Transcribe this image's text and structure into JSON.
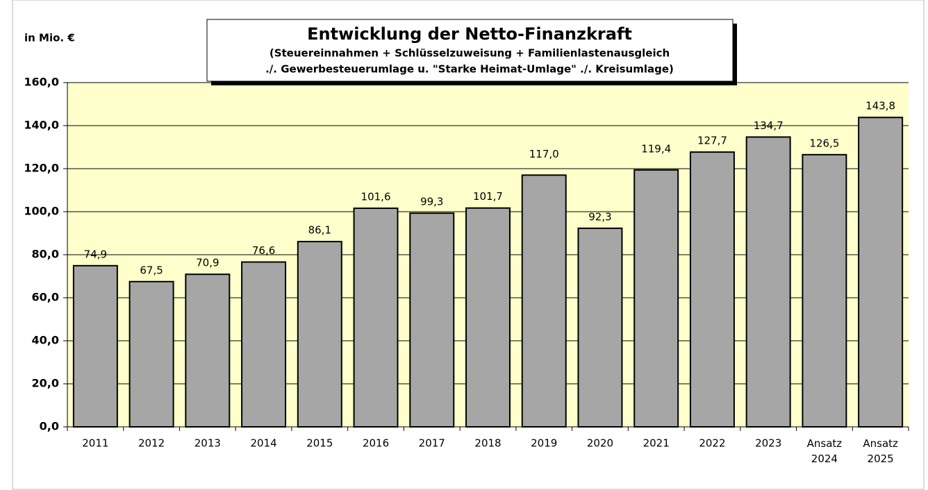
{
  "chart_data": {
    "type": "bar",
    "title": "Entwicklung der Netto-Finanzkraft",
    "subtitle": [
      "(Steuereinnahmen + Schlüsselzuweisung + Familienlastenausgleich",
      "./. Gewerbesteuerumlage u. \"Starke Heimat-Umlage\" ./. Kreisumlage)"
    ],
    "y_axis_label": "in Mio. €",
    "categories": [
      "2011",
      "2012",
      "2013",
      "2014",
      "2015",
      "2016",
      "2017",
      "2018",
      "2019",
      "2020",
      "2021",
      "2022",
      "2023",
      "Ansatz 2024",
      "Ansatz 2025"
    ],
    "values": [
      74.9,
      67.5,
      70.9,
      76.6,
      86.1,
      101.6,
      99.3,
      101.7,
      117.0,
      92.3,
      119.4,
      127.7,
      134.7,
      126.5,
      143.8
    ],
    "value_labels": [
      "74,9",
      "67,5",
      "70,9",
      "76,6",
      "86,1",
      "101,6",
      "99,3",
      "101,7",
      "117,0",
      "92,3",
      "119,4",
      "127,7",
      "134,7",
      "126,5",
      "143,8"
    ],
    "color": "#a6a6a6",
    "ylim": [
      0,
      160
    ],
    "yticks": [
      {
        "value": 0,
        "label": "0,0"
      },
      {
        "value": 20,
        "label": "20,0"
      },
      {
        "value": 40,
        "label": "40,0"
      },
      {
        "value": 60,
        "label": "60,0"
      },
      {
        "value": 80,
        "label": "80,0"
      },
      {
        "value": 100,
        "label": "100,0"
      },
      {
        "value": 120,
        "label": "120,0"
      },
      {
        "value": 140,
        "label": "140,0"
      },
      {
        "value": 160,
        "label": "160,0"
      }
    ],
    "grid": true
  }
}
